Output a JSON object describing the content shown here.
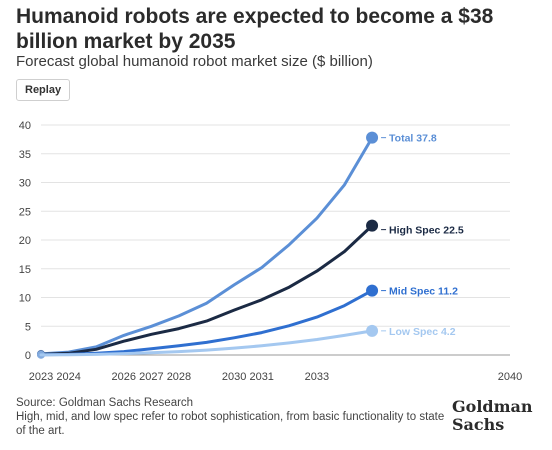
{
  "header": {
    "title": "Humanoid robots are expected to become a $38 billion market by 2035",
    "subtitle": "Forecast global humanoid robot market size ($ billion)"
  },
  "controls": {
    "replay_label": "Replay"
  },
  "footer": {
    "source": "Source: Goldman Sachs Research",
    "note": "High, mid, and low spec refer to robot sophistication, from basic functionality to state of the art.",
    "logo_text": "Goldman Sachs"
  },
  "chart_data": {
    "type": "line",
    "x_ticks": [
      "2023",
      "2024",
      "2026",
      "2027",
      "2028",
      "2030",
      "2031",
      "2033",
      "2040"
    ],
    "y_ticks": [
      "0",
      "5",
      "10",
      "15",
      "20",
      "25",
      "30",
      "35",
      "40"
    ],
    "ylim": [
      0,
      40
    ],
    "grid": true,
    "series": [
      {
        "name": "Total",
        "end_label": "Total 37.8",
        "color": "#5b8fd6",
        "x": [
          2023,
          2024,
          2025,
          2026,
          2027,
          2028,
          2029,
          2030,
          2031,
          2032,
          2033,
          2034,
          2035
        ],
        "values": [
          0.2,
          0.5,
          1.4,
          3.4,
          5.0,
          6.8,
          9.0,
          12.2,
          15.2,
          19.2,
          23.8,
          29.6,
          37.8
        ]
      },
      {
        "name": "High Spec",
        "end_label": "High Spec 22.5",
        "color": "#1b2a44",
        "x": [
          2023,
          2024,
          2025,
          2026,
          2027,
          2028,
          2029,
          2030,
          2031,
          2032,
          2033,
          2034,
          2035
        ],
        "values": [
          0.1,
          0.3,
          1.0,
          2.4,
          3.6,
          4.6,
          5.9,
          7.8,
          9.6,
          11.8,
          14.6,
          18.0,
          22.5
        ]
      },
      {
        "name": "Mid Spec",
        "end_label": "Mid Spec 11.2",
        "color": "#2f6fd0",
        "x": [
          2023,
          2024,
          2025,
          2026,
          2027,
          2028,
          2029,
          2030,
          2031,
          2032,
          2033,
          2034,
          2035
        ],
        "values": [
          0.05,
          0.1,
          0.3,
          0.6,
          1.1,
          1.6,
          2.2,
          3.0,
          3.9,
          5.1,
          6.6,
          8.6,
          11.2
        ]
      },
      {
        "name": "Low Spec",
        "end_label": "Low Spec 4.2",
        "color": "#a4c8f0",
        "x": [
          2023,
          2024,
          2025,
          2026,
          2027,
          2028,
          2029,
          2030,
          2031,
          2032,
          2033,
          2034,
          2035
        ],
        "values": [
          0.02,
          0.05,
          0.1,
          0.25,
          0.4,
          0.6,
          0.85,
          1.2,
          1.6,
          2.1,
          2.7,
          3.4,
          4.2
        ]
      }
    ]
  }
}
